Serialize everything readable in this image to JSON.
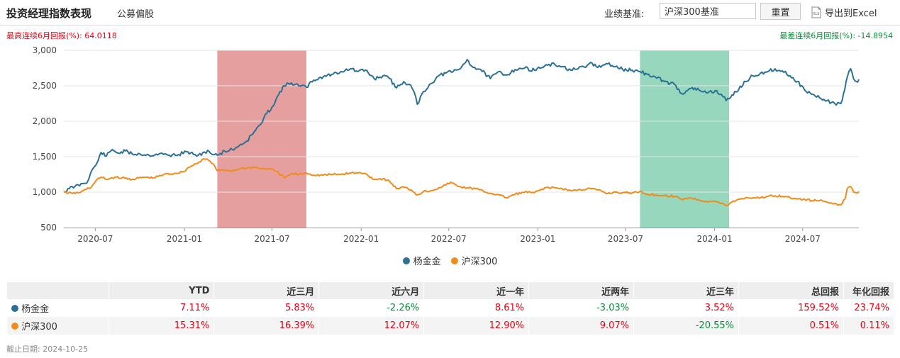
{
  "header": {
    "title": "投资经理指数表现",
    "subtitle": "公募偏股",
    "benchmark_label": "业绩基准:",
    "benchmark_value": "沪深300基准",
    "reset_label": "重置",
    "export_label": "导出到Excel",
    "export_icon": "xls-file-icon"
  },
  "extremes": {
    "max_label": "最高连续6月回报(%): 64.0118",
    "min_label": "最差连续6月回报(%): -14.8954"
  },
  "chart_data": {
    "type": "line",
    "ylim": [
      500,
      3000
    ],
    "yticks": [
      500,
      1000,
      1500,
      2000,
      2500,
      3000
    ],
    "ytick_labels": [
      "500",
      "1,000",
      "1,500",
      "2,000",
      "2,500",
      "3,000"
    ],
    "x_start": "2020-04-27",
    "x_end": "2024-10-25",
    "xticks": [
      "2020-07",
      "2021-01",
      "2021-07",
      "2022-01",
      "2022-07",
      "2023-01",
      "2023-07",
      "2024-01",
      "2024-07"
    ],
    "grid": "horizontal",
    "legend_position": "bottom",
    "highlights": [
      {
        "start": "2021-03-10",
        "end": "2021-09-10",
        "color": "#d96b6b"
      },
      {
        "start": "2023-07-31",
        "end": "2024-01-31",
        "color": "#5ec29a"
      }
    ],
    "series": [
      {
        "name": "杨金金",
        "color": "#2a7195",
        "points": [
          [
            "2020-04-27",
            1000
          ],
          [
            "2020-05-08",
            1050
          ],
          [
            "2020-05-20",
            1080
          ],
          [
            "2020-06-05",
            1120
          ],
          [
            "2020-06-16",
            1160
          ],
          [
            "2020-06-24",
            1310
          ],
          [
            "2020-07-02",
            1380
          ],
          [
            "2020-07-07",
            1450
          ],
          [
            "2020-07-13",
            1560
          ],
          [
            "2020-07-24",
            1510
          ],
          [
            "2020-08-05",
            1600
          ],
          [
            "2020-08-18",
            1550
          ],
          [
            "2020-09-01",
            1580
          ],
          [
            "2020-09-15",
            1540
          ],
          [
            "2020-10-01",
            1540
          ],
          [
            "2020-10-20",
            1520
          ],
          [
            "2020-11-10",
            1540
          ],
          [
            "2020-12-01",
            1520
          ],
          [
            "2020-12-20",
            1530
          ],
          [
            "2021-01-05",
            1570
          ],
          [
            "2021-01-20",
            1530
          ],
          [
            "2021-02-05",
            1520
          ],
          [
            "2021-02-18",
            1590
          ],
          [
            "2021-03-01",
            1530
          ],
          [
            "2021-03-10",
            1520
          ],
          [
            "2021-03-25",
            1580
          ],
          [
            "2021-04-10",
            1600
          ],
          [
            "2021-04-25",
            1660
          ],
          [
            "2021-05-10",
            1720
          ],
          [
            "2021-05-25",
            1850
          ],
          [
            "2021-06-08",
            1960
          ],
          [
            "2021-06-20",
            2110
          ],
          [
            "2021-07-01",
            2200
          ],
          [
            "2021-07-15",
            2380
          ],
          [
            "2021-07-26",
            2500
          ],
          [
            "2021-08-10",
            2540
          ],
          [
            "2021-08-25",
            2500
          ],
          [
            "2021-09-10",
            2480
          ],
          [
            "2021-09-25",
            2580
          ],
          [
            "2021-10-15",
            2630
          ],
          [
            "2021-11-01",
            2660
          ],
          [
            "2021-11-20",
            2700
          ],
          [
            "2021-12-10",
            2740
          ],
          [
            "2021-12-25",
            2700
          ],
          [
            "2022-01-10",
            2720
          ],
          [
            "2022-01-28",
            2600
          ],
          [
            "2022-02-15",
            2640
          ],
          [
            "2022-03-01",
            2600
          ],
          [
            "2022-03-15",
            2470
          ],
          [
            "2022-03-30",
            2560
          ],
          [
            "2022-04-10",
            2520
          ],
          [
            "2022-04-20",
            2420
          ],
          [
            "2022-04-27",
            2240
          ],
          [
            "2022-05-10",
            2420
          ],
          [
            "2022-05-25",
            2530
          ],
          [
            "2022-06-10",
            2640
          ],
          [
            "2022-06-25",
            2680
          ],
          [
            "2022-07-10",
            2700
          ],
          [
            "2022-07-25",
            2740
          ],
          [
            "2022-08-08",
            2870
          ],
          [
            "2022-08-20",
            2760
          ],
          [
            "2022-09-05",
            2730
          ],
          [
            "2022-09-25",
            2600
          ],
          [
            "2022-10-12",
            2700
          ],
          [
            "2022-10-28",
            2650
          ],
          [
            "2022-11-15",
            2730
          ],
          [
            "2022-12-05",
            2750
          ],
          [
            "2022-12-25",
            2720
          ],
          [
            "2023-01-15",
            2780
          ],
          [
            "2023-02-05",
            2800
          ],
          [
            "2023-02-20",
            2770
          ],
          [
            "2023-03-10",
            2720
          ],
          [
            "2023-03-25",
            2740
          ],
          [
            "2023-04-10",
            2760
          ],
          [
            "2023-04-20",
            2830
          ],
          [
            "2023-05-05",
            2760
          ],
          [
            "2023-05-25",
            2810
          ],
          [
            "2023-06-10",
            2770
          ],
          [
            "2023-06-25",
            2730
          ],
          [
            "2023-07-15",
            2720
          ],
          [
            "2023-07-31",
            2700
          ],
          [
            "2023-08-15",
            2660
          ],
          [
            "2023-09-01",
            2620
          ],
          [
            "2023-09-20",
            2560
          ],
          [
            "2023-10-10",
            2520
          ],
          [
            "2023-10-25",
            2390
          ],
          [
            "2023-11-10",
            2460
          ],
          [
            "2023-11-30",
            2440
          ],
          [
            "2023-12-15",
            2400
          ],
          [
            "2024-01-02",
            2430
          ],
          [
            "2024-01-15",
            2380
          ],
          [
            "2024-01-25",
            2290
          ],
          [
            "2024-02-06",
            2370
          ],
          [
            "2024-02-20",
            2450
          ],
          [
            "2024-03-05",
            2560
          ],
          [
            "2024-03-20",
            2640
          ],
          [
            "2024-04-05",
            2680
          ],
          [
            "2024-04-20",
            2700
          ],
          [
            "2024-05-05",
            2740
          ],
          [
            "2024-05-20",
            2710
          ],
          [
            "2024-06-05",
            2640
          ],
          [
            "2024-06-20",
            2560
          ],
          [
            "2024-07-05",
            2440
          ],
          [
            "2024-07-20",
            2380
          ],
          [
            "2024-08-05",
            2330
          ],
          [
            "2024-08-20",
            2290
          ],
          [
            "2024-09-05",
            2250
          ],
          [
            "2024-09-18",
            2250
          ],
          [
            "2024-09-26",
            2450
          ],
          [
            "2024-10-01",
            2620
          ],
          [
            "2024-10-08",
            2740
          ],
          [
            "2024-10-14",
            2600
          ],
          [
            "2024-10-20",
            2560
          ],
          [
            "2024-10-25",
            2590
          ]
        ]
      },
      {
        "name": "沪深300",
        "color": "#f08c1c",
        "points": [
          [
            "2020-04-27",
            1000
          ],
          [
            "2020-05-15",
            980
          ],
          [
            "2020-06-01",
            1000
          ],
          [
            "2020-06-24",
            1080
          ],
          [
            "2020-07-02",
            1160
          ],
          [
            "2020-07-13",
            1210
          ],
          [
            "2020-07-24",
            1180
          ],
          [
            "2020-08-10",
            1210
          ],
          [
            "2020-08-25",
            1200
          ],
          [
            "2020-09-15",
            1180
          ],
          [
            "2020-10-10",
            1210
          ],
          [
            "2020-10-30",
            1200
          ],
          [
            "2020-11-20",
            1250
          ],
          [
            "2020-12-10",
            1260
          ],
          [
            "2020-12-31",
            1290
          ],
          [
            "2021-01-10",
            1350
          ],
          [
            "2021-01-25",
            1400
          ],
          [
            "2021-02-10",
            1470
          ],
          [
            "2021-02-20",
            1450
          ],
          [
            "2021-03-01",
            1400
          ],
          [
            "2021-03-10",
            1300
          ],
          [
            "2021-03-25",
            1310
          ],
          [
            "2021-04-10",
            1300
          ],
          [
            "2021-04-25",
            1330
          ],
          [
            "2021-05-10",
            1340
          ],
          [
            "2021-05-25",
            1350
          ],
          [
            "2021-06-10",
            1330
          ],
          [
            "2021-06-25",
            1330
          ],
          [
            "2021-07-10",
            1290
          ],
          [
            "2021-07-28",
            1200
          ],
          [
            "2021-08-10",
            1260
          ],
          [
            "2021-08-25",
            1250
          ],
          [
            "2021-09-10",
            1270
          ],
          [
            "2021-09-25",
            1240
          ],
          [
            "2021-10-15",
            1240
          ],
          [
            "2021-11-01",
            1250
          ],
          [
            "2021-11-20",
            1250
          ],
          [
            "2021-12-10",
            1270
          ],
          [
            "2021-12-25",
            1270
          ],
          [
            "2022-01-10",
            1260
          ],
          [
            "2022-01-28",
            1180
          ],
          [
            "2022-02-15",
            1190
          ],
          [
            "2022-03-01",
            1150
          ],
          [
            "2022-03-15",
            1050
          ],
          [
            "2022-03-30",
            1070
          ],
          [
            "2022-04-15",
            1030
          ],
          [
            "2022-04-27",
            960
          ],
          [
            "2022-05-10",
            1010
          ],
          [
            "2022-05-25",
            1020
          ],
          [
            "2022-06-10",
            1060
          ],
          [
            "2022-06-25",
            1100
          ],
          [
            "2022-07-05",
            1140
          ],
          [
            "2022-07-20",
            1080
          ],
          [
            "2022-08-08",
            1060
          ],
          [
            "2022-08-25",
            1050
          ],
          [
            "2022-09-15",
            1000
          ],
          [
            "2022-10-12",
            960
          ],
          [
            "2022-10-28",
            920
          ],
          [
            "2022-11-15",
            970
          ],
          [
            "2022-12-05",
            1000
          ],
          [
            "2022-12-25",
            990
          ],
          [
            "2023-01-15",
            1060
          ],
          [
            "2023-02-05",
            1060
          ],
          [
            "2023-02-20",
            1050
          ],
          [
            "2023-03-10",
            1020
          ],
          [
            "2023-03-25",
            1030
          ],
          [
            "2023-04-20",
            1050
          ],
          [
            "2023-05-05",
            1030
          ],
          [
            "2023-05-25",
            980
          ],
          [
            "2023-06-10",
            1000
          ],
          [
            "2023-06-25",
            990
          ],
          [
            "2023-07-15",
            990
          ],
          [
            "2023-07-31",
            1010
          ],
          [
            "2023-08-15",
            970
          ],
          [
            "2023-09-01",
            960
          ],
          [
            "2023-09-20",
            950
          ],
          [
            "2023-10-10",
            940
          ],
          [
            "2023-10-25",
            900
          ],
          [
            "2023-11-10",
            920
          ],
          [
            "2023-11-30",
            890
          ],
          [
            "2023-12-15",
            870
          ],
          [
            "2024-01-02",
            870
          ],
          [
            "2024-01-15",
            840
          ],
          [
            "2024-01-25",
            810
          ],
          [
            "2024-02-06",
            860
          ],
          [
            "2024-02-20",
            900
          ],
          [
            "2024-03-05",
            920
          ],
          [
            "2024-03-20",
            920
          ],
          [
            "2024-04-05",
            920
          ],
          [
            "2024-04-20",
            940
          ],
          [
            "2024-05-05",
            950
          ],
          [
            "2024-05-20",
            940
          ],
          [
            "2024-06-05",
            920
          ],
          [
            "2024-06-20",
            900
          ],
          [
            "2024-07-05",
            900
          ],
          [
            "2024-07-20",
            880
          ],
          [
            "2024-08-05",
            880
          ],
          [
            "2024-08-20",
            860
          ],
          [
            "2024-09-05",
            840
          ],
          [
            "2024-09-18",
            820
          ],
          [
            "2024-09-26",
            900
          ],
          [
            "2024-10-01",
            1050
          ],
          [
            "2024-10-08",
            1080
          ],
          [
            "2024-10-14",
            1000
          ],
          [
            "2024-10-20",
            990
          ],
          [
            "2024-10-25",
            1010
          ]
        ]
      }
    ]
  },
  "table": {
    "columns": [
      "YTD",
      "近三月",
      "近六月",
      "近一年",
      "近两年",
      "近三年",
      "总回报",
      "年化回报"
    ],
    "rows": [
      {
        "name": "杨金金",
        "color": "#2a7195",
        "values": [
          "7.11%",
          "5.83%",
          "-2.26%",
          "8.61%",
          "-3.03%",
          "3.52%",
          "159.52%",
          "23.74%"
        ]
      },
      {
        "name": "沪深300",
        "color": "#f08c1c",
        "values": [
          "15.31%",
          "16.39%",
          "12.07%",
          "12.90%",
          "9.07%",
          "-20.55%",
          "0.51%",
          "0.11%"
        ]
      }
    ]
  },
  "footer": "截止日期: 2024-10-25",
  "colors": {
    "positive": "#e60012",
    "negative": "#0a8a3a"
  }
}
